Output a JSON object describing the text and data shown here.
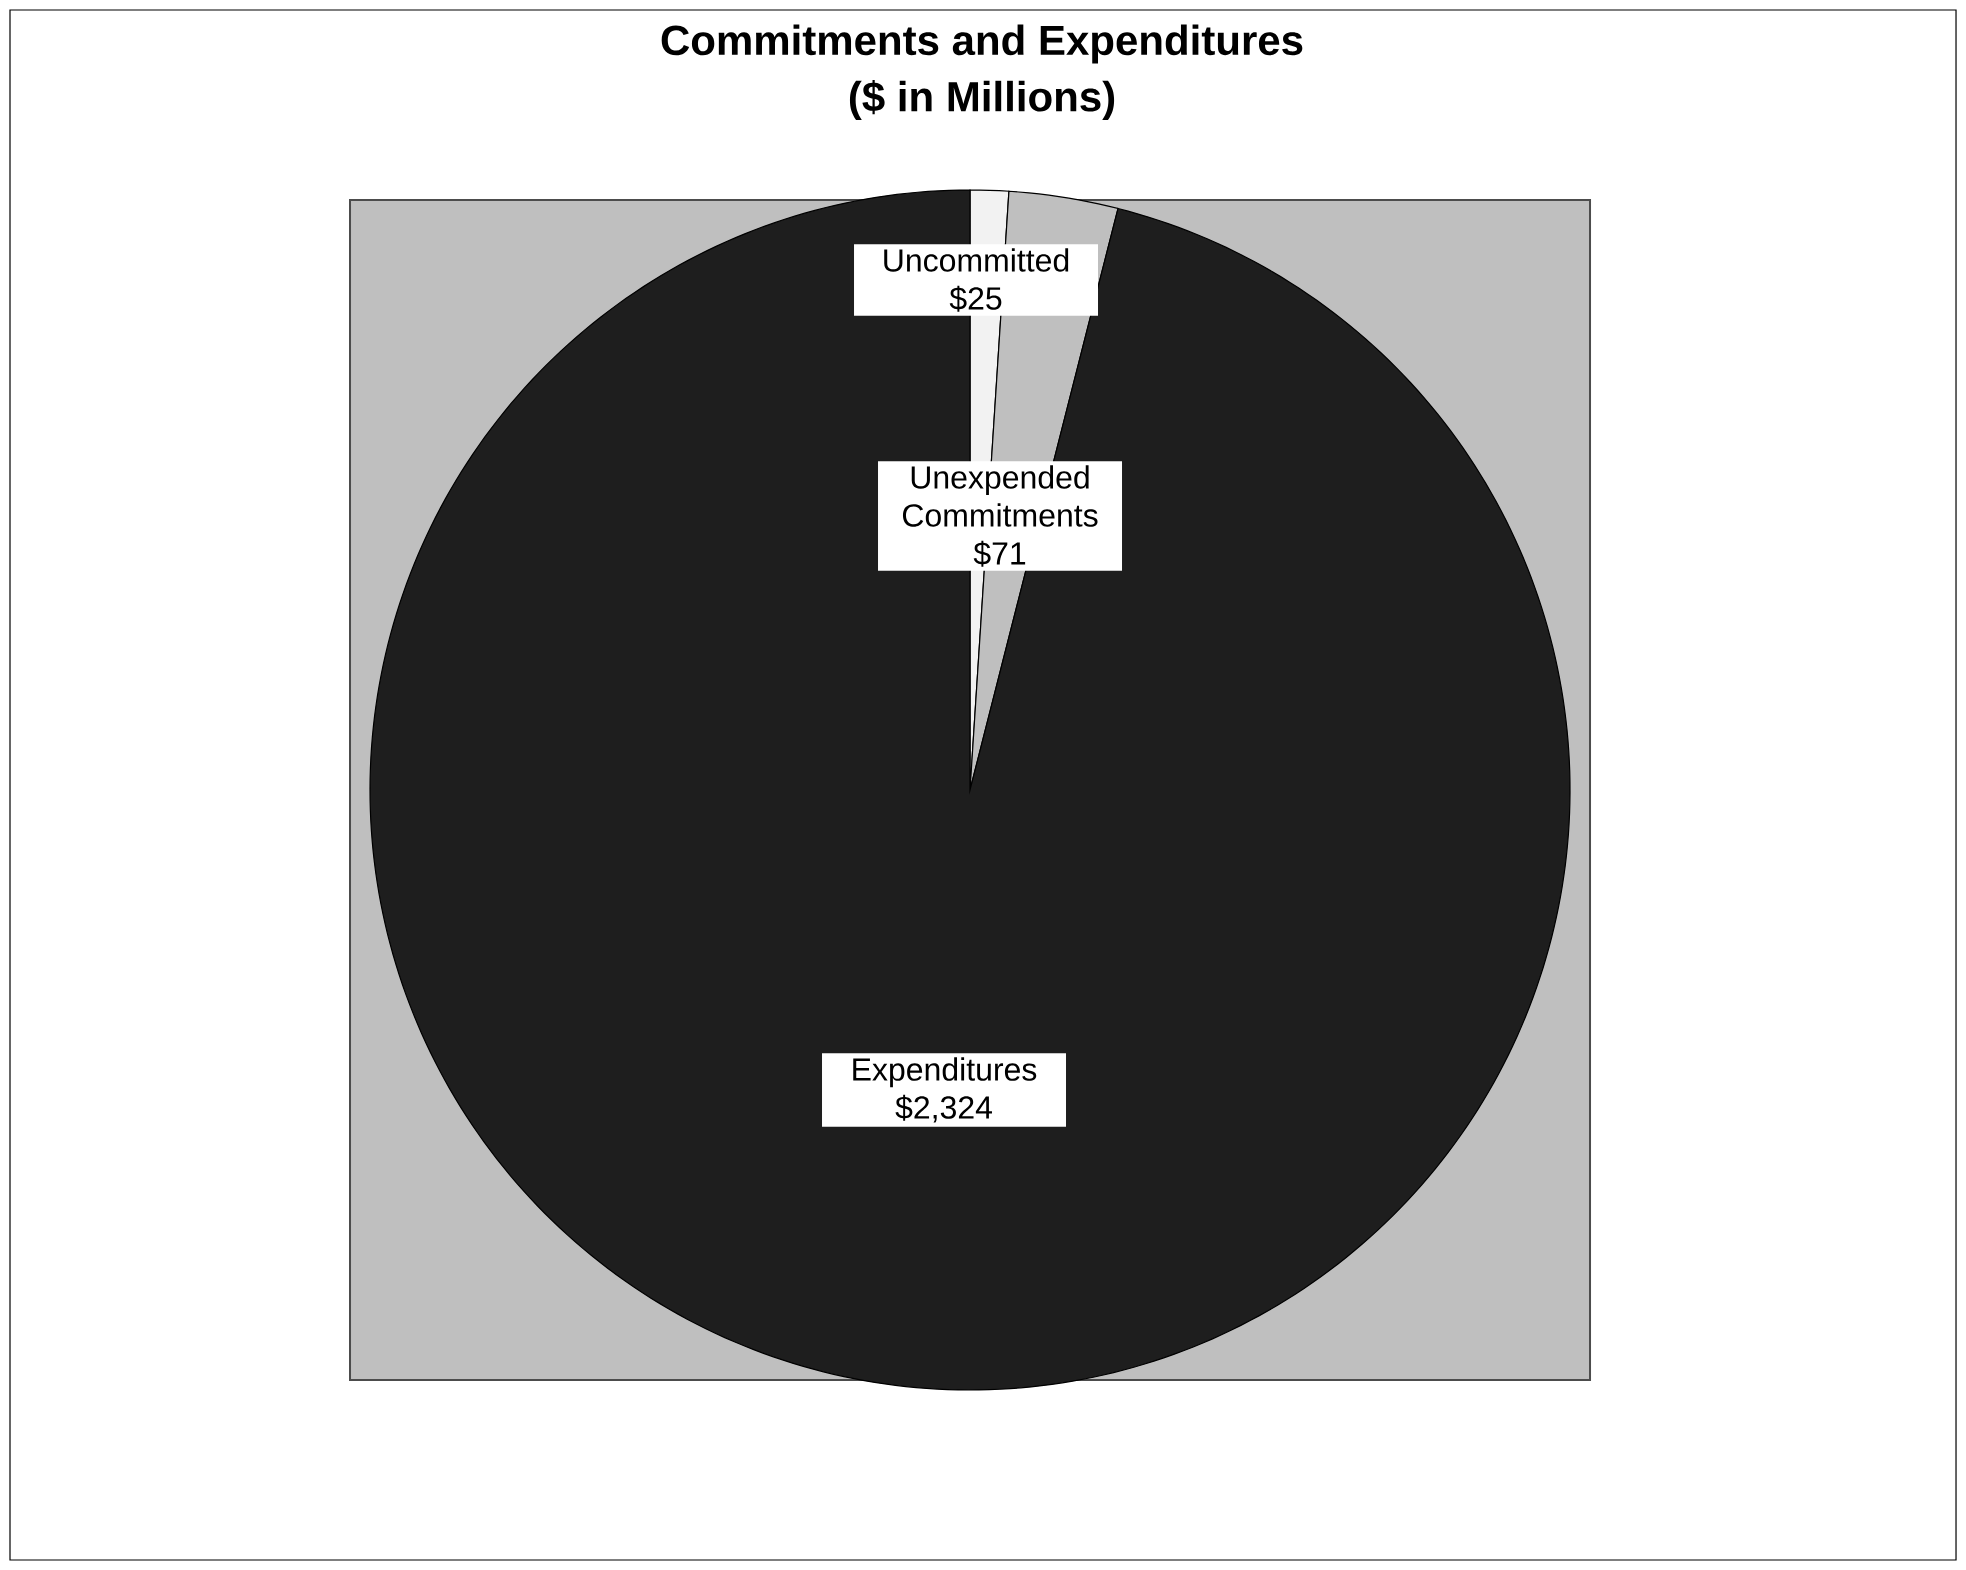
{
  "chart_data": {
    "type": "pie",
    "title": "Commitments and Expenditures",
    "subtitle": "($ in Millions)",
    "categories": [
      "Uncommitted",
      "Unexpended Commitments",
      "Expenditures"
    ],
    "values": [
      25,
      71,
      2324
    ],
    "colors": [
      "#f2f2f2",
      "#bfbfbf",
      "#1e1e1e"
    ],
    "value_labels": [
      "$25",
      "$71",
      "$2,324"
    ]
  }
}
